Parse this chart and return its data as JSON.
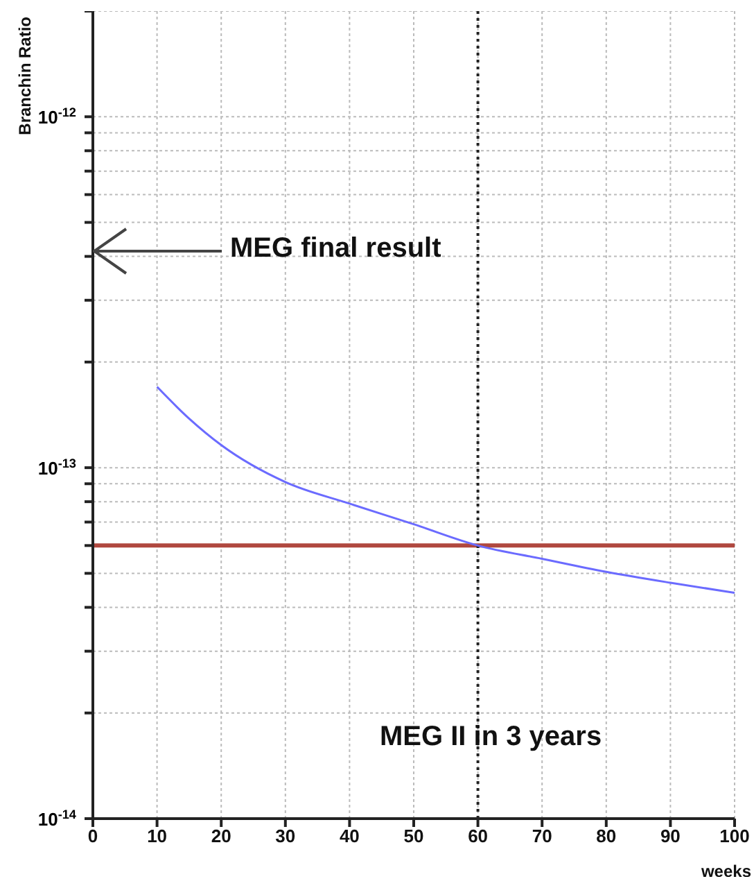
{
  "chart_data": {
    "type": "line",
    "ylabel": "Branchin Ratio",
    "xlabel": "weeks",
    "log": "y",
    "x": [
      10,
      15,
      20,
      30,
      40,
      50,
      60,
      70,
      80,
      90,
      100
    ],
    "series": [
      {
        "color": "#6b6bff",
        "values": [
          1.7e-13,
          1.38e-13,
          1.16e-13,
          9.1e-14,
          7.9e-14,
          6.9e-14,
          6e-14,
          5.5e-14,
          5.05e-14,
          4.7e-14,
          4.4e-14
        ]
      }
    ],
    "marker": "none",
    "line_style": "solid",
    "grid": true,
    "xlim": [
      0,
      100
    ],
    "xticks": [
      0,
      10,
      20,
      30,
      40,
      50,
      60,
      70,
      80,
      90,
      100
    ],
    "ylim": [
      1e-14,
      2e-12
    ],
    "yticks": [
      {
        "value": 1e-14,
        "label": "10$^{-14}$"
      },
      {
        "value": 2e-14,
        "label": null
      },
      {
        "value": 3e-14,
        "label": null
      },
      {
        "value": 4e-14,
        "label": null
      },
      {
        "value": 5e-14,
        "label": null
      },
      {
        "value": 6e-14,
        "label": null
      },
      {
        "value": 7e-14,
        "label": null
      },
      {
        "value": 8e-14,
        "label": null
      },
      {
        "value": 9e-14,
        "label": null
      },
      {
        "value": 1e-13,
        "label": "10$^{-13}$"
      },
      {
        "value": 2e-13,
        "label": null
      },
      {
        "value": 3e-13,
        "label": null
      },
      {
        "value": 4e-13,
        "label": null
      },
      {
        "value": 5e-13,
        "label": null
      },
      {
        "value": 6e-13,
        "label": null
      },
      {
        "value": 7e-13,
        "label": null
      },
      {
        "value": 8e-13,
        "label": null
      },
      {
        "value": 9e-13,
        "label": null
      },
      {
        "value": 1e-12,
        "label": "10$^{-12}$"
      },
      {
        "value": 2e-12,
        "label": null
      }
    ],
    "ref_lines": [
      {
        "axis": "y",
        "value": 6e-14,
        "color": "#b0483f",
        "line_style": "solid"
      },
      {
        "axis": "x",
        "value": 60,
        "color": "#222222",
        "line_style": "dotted"
      }
    ],
    "annotations": [
      "MEG final result",
      "MEG II in 3 years"
    ]
  }
}
